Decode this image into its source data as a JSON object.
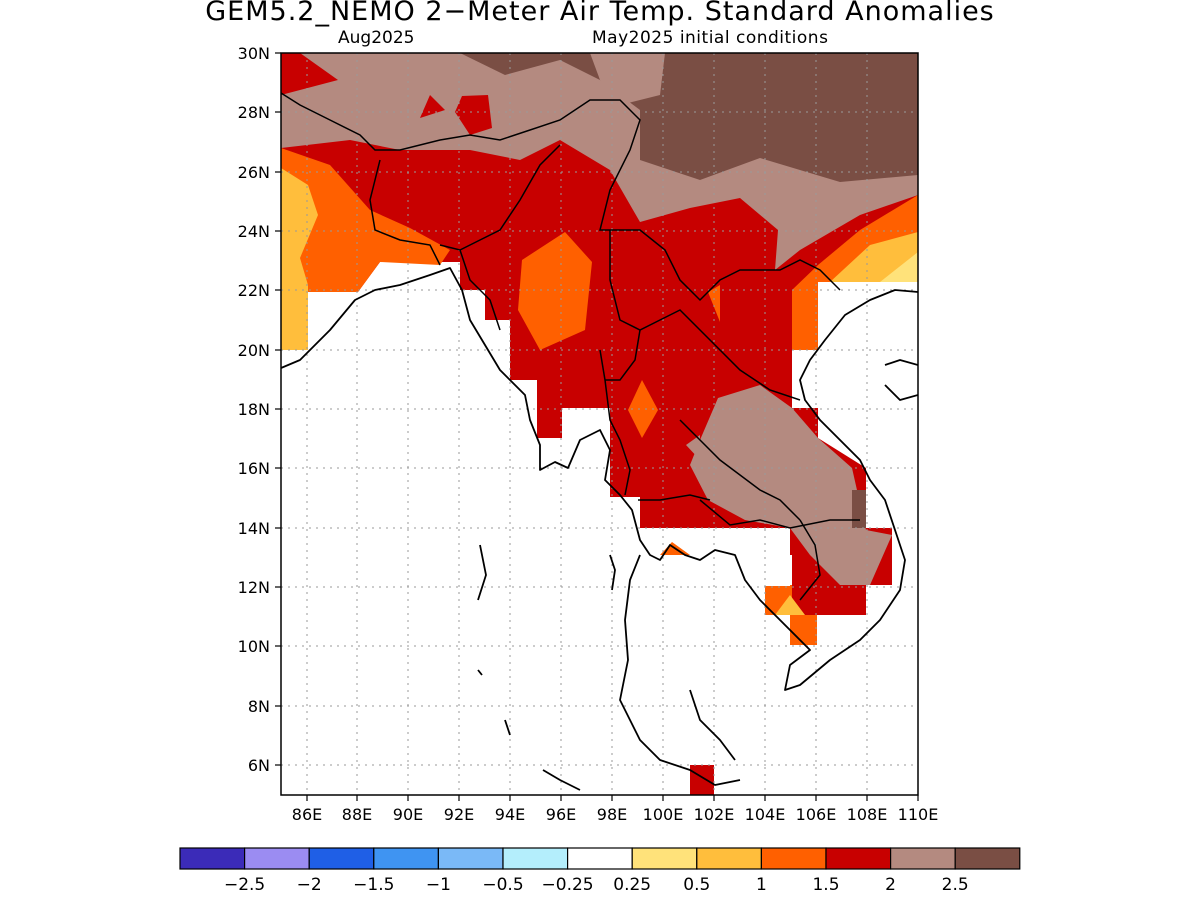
{
  "title": "GEM5.2_NEMO 2−Meter Air Temp. Standard Anomalies",
  "valid_month": "Aug2025",
  "initial_conditions": "May2025 initial conditions",
  "map": {
    "lon_range": [
      85,
      110
    ],
    "lat_range": [
      5,
      30
    ],
    "lon_ticks": [
      "86E",
      "88E",
      "90E",
      "92E",
      "94E",
      "96E",
      "98E",
      "100E",
      "102E",
      "104E",
      "106E",
      "108E",
      "110E"
    ],
    "lat_ticks": [
      "6N",
      "8N",
      "10N",
      "12N",
      "14N",
      "16N",
      "18N",
      "20N",
      "22N",
      "24N",
      "26N",
      "28N",
      "30N"
    ],
    "gridlines": "dotted"
  },
  "colorbar": {
    "colors": [
      "#3b2bb8",
      "#9b8cf2",
      "#1f5fe6",
      "#3f94f2",
      "#7ab9f7",
      "#b4eefc",
      "#ffffff",
      "#ffe27a",
      "#ffbe3c",
      "#ff6000",
      "#c80000",
      "#b48a80",
      "#7a4e44"
    ],
    "labels": [
      "−2.5",
      "−2",
      "−1.5",
      "−1",
      "−0.5",
      "−0.25",
      "0.25",
      "0.5",
      "1",
      "1.5",
      "2",
      "2.5"
    ]
  }
}
